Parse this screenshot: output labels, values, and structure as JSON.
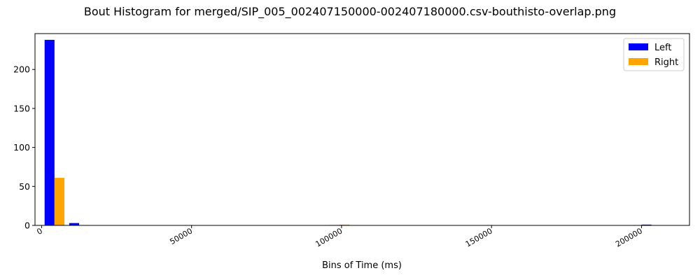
{
  "chart_data": {
    "type": "bar",
    "title": "Bout Histogram for merged/SIP_005_002407150000-002407180000.csv-bouthisto-overlap.png",
    "xlabel": "Bins of Time (ms)",
    "ylabel": "",
    "xlim": [
      -2200,
      216000
    ],
    "ylim": [
      0,
      246
    ],
    "xticks": [
      0,
      50000,
      100000,
      150000,
      200000
    ],
    "xtick_labels": [
      "0",
      "50000",
      "100000",
      "150000",
      "200000"
    ],
    "yticks": [
      0,
      50,
      100,
      150,
      200
    ],
    "ytick_labels": [
      "0",
      "50",
      "100",
      "150",
      "200"
    ],
    "bar_width": 3300,
    "legend_position": "top-right",
    "series": [
      {
        "name": "Left",
        "color": "#0000ff",
        "x": [
          1000,
          9200,
          96000,
          200000
        ],
        "values": [
          238,
          3,
          0.5,
          1
        ]
      },
      {
        "name": "Right",
        "color": "#ffa500",
        "x": [
          4300,
          99300
        ],
        "values": [
          61,
          1
        ]
      }
    ]
  }
}
